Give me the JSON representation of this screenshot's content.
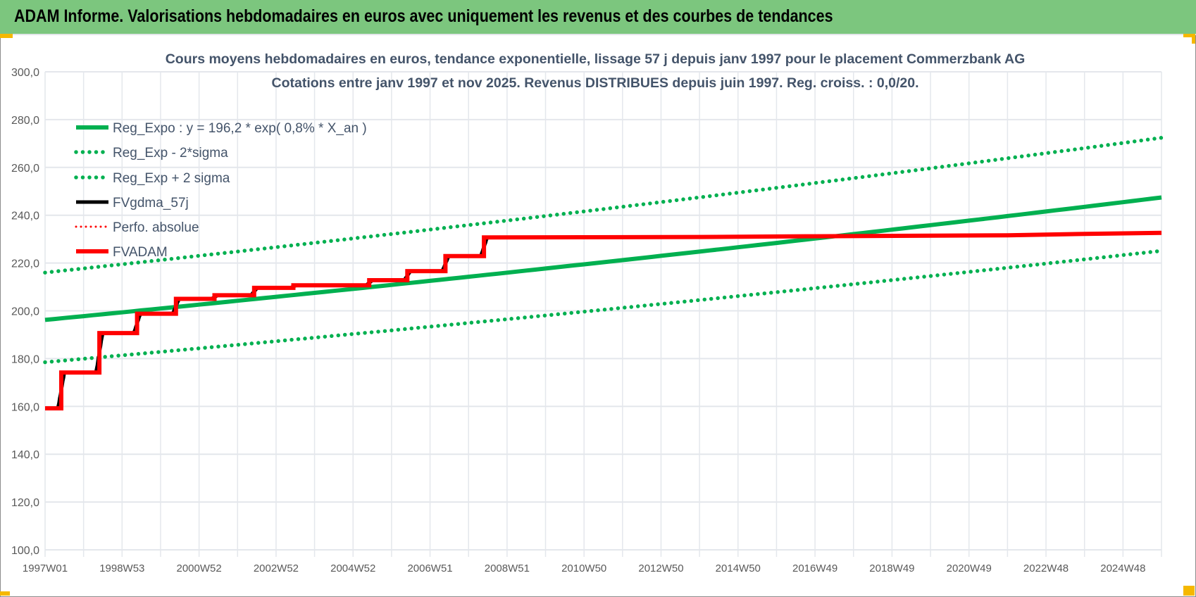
{
  "window": {
    "title": "ADAM Informe. Valorisations hebdomadaires en euros avec uniquement les revenus et des courbes de tendances"
  },
  "colors": {
    "green": "#00b050",
    "red": "#ff0000",
    "black": "#000000",
    "grid": "#e4e7ec",
    "titlebar": "#7cc67e"
  },
  "chart_data": {
    "type": "line",
    "title": [
      "Cours moyens hebdomadaires en euros, tendance exponentielle, lissage 57 j depuis janv 1997 pour le placement Commerzbank AG",
      "Cotations entre janv 1997 et nov 2025. Revenus DISTRIBUES depuis juin 1997. Reg. croiss. : 0,0/20."
    ],
    "x_unit": "years since 1997W01",
    "xlim": [
      0,
      29
    ],
    "ylim": [
      100,
      300
    ],
    "grid": true,
    "y_ticks": [
      "100,0",
      "120,0",
      "140,0",
      "160,0",
      "180,0",
      "200,0",
      "220,0",
      "240,0",
      "260,0",
      "280,0",
      "300,0"
    ],
    "y_tick_values": [
      100,
      120,
      140,
      160,
      180,
      200,
      220,
      240,
      260,
      280,
      300
    ],
    "x_ticks": [
      "1997W01",
      "1998W53",
      "2000W52",
      "2002W52",
      "2004W52",
      "2006W51",
      "2008W51",
      "2010W50",
      "2012W50",
      "2014W50",
      "2016W49",
      "2018W49",
      "2020W49",
      "2022W48",
      "2024W48"
    ],
    "x_tick_values": [
      0,
      2,
      4,
      6,
      8,
      10,
      12,
      14,
      16,
      18,
      20,
      22,
      24,
      26,
      28
    ],
    "legend_placement": "top-left",
    "series": [
      {
        "name": "Reg_Expo : y = 196,2 * exp( 0,8% *  X_an )",
        "style": "solid-green",
        "formula": {
          "a": 196.2,
          "rate": 0.008
        }
      },
      {
        "name": "Reg_Exp - 2*sigma",
        "style": "dotted-green",
        "formula": {
          "a": 178.5,
          "rate": 0.008
        }
      },
      {
        "name": "Reg_Exp + 2 sigma",
        "style": "dotted-green",
        "formula": {
          "a": 216.0,
          "rate": 0.008
        }
      },
      {
        "name": "FVgdma_57j",
        "style": "solid-black",
        "smoothing_of": "FVADAM",
        "window_years": 0.16
      },
      {
        "name": "Perfo. absolue",
        "style": "dotted-red",
        "points": []
      },
      {
        "name": "FVADAM",
        "style": "solid-red",
        "step": true,
        "points": [
          [
            0,
            159.2
          ],
          [
            0.42,
            174.2
          ],
          [
            1.41,
            190.7
          ],
          [
            2.39,
            198.8
          ],
          [
            3.4,
            205.0
          ],
          [
            4.4,
            206.5
          ],
          [
            5.43,
            209.6
          ],
          [
            6.45,
            210.7
          ],
          [
            8.42,
            212.8
          ],
          [
            9.41,
            216.6
          ],
          [
            10.4,
            222.9
          ],
          [
            11.4,
            230.7
          ],
          [
            17,
            230.9
          ],
          [
            20,
            231.2
          ],
          [
            25,
            231.6
          ],
          [
            27,
            232.2
          ],
          [
            29,
            232.6
          ]
        ]
      }
    ]
  }
}
